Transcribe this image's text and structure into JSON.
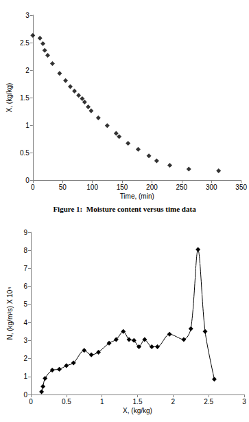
{
  "chart_data": [
    {
      "type": "scatter",
      "title": "Figure 1:  Moisture content versus time data",
      "x_label": "Time, (min)",
      "y_label": "X, (kg/kg)",
      "x": [
        0,
        12,
        17,
        20,
        25,
        33,
        45,
        55,
        63,
        70,
        77,
        83,
        87,
        93,
        98,
        110,
        125,
        140,
        145,
        160,
        177,
        195,
        208,
        230,
        262,
        312
      ],
      "values": [
        2.63,
        2.58,
        2.48,
        2.36,
        2.27,
        2.12,
        1.94,
        1.81,
        1.7,
        1.62,
        1.54,
        1.48,
        1.42,
        1.33,
        1.26,
        1.13,
        0.99,
        0.85,
        0.79,
        0.67,
        0.56,
        0.44,
        0.35,
        0.27,
        0.2,
        0.17
      ],
      "xlim": [
        0,
        350
      ],
      "xticks": [
        0,
        50,
        100,
        150,
        200,
        250,
        300,
        350
      ],
      "ylim": [
        0,
        3
      ],
      "yticks": [
        0,
        0.5,
        1,
        1.5,
        2,
        2.5,
        3
      ],
      "grid": false,
      "color": "#000000",
      "marker": "diamond"
    },
    {
      "type": "line",
      "x_label": "X, (kg/kg)",
      "y_label": "N, (kg/m²s) X 10⁴",
      "x": [
        0.15,
        0.17,
        0.2,
        0.3,
        0.4,
        0.5,
        0.6,
        0.75,
        0.85,
        0.95,
        1.1,
        1.2,
        1.3,
        1.38,
        1.45,
        1.52,
        1.6,
        1.7,
        1.78,
        1.95,
        2.15,
        2.25,
        2.35,
        2.45,
        2.58
      ],
      "values": [
        0.15,
        0.45,
        0.9,
        1.35,
        1.4,
        1.6,
        1.75,
        2.45,
        2.2,
        2.35,
        2.85,
        3.05,
        3.5,
        3.05,
        3.0,
        2.65,
        3.05,
        2.65,
        2.65,
        3.35,
        3.05,
        3.65,
        8.05,
        3.5,
        0.85
      ],
      "xlim": [
        0,
        3
      ],
      "xticks": [
        0,
        0.5,
        1,
        1.5,
        2,
        2.5,
        3
      ],
      "ylim": [
        0,
        9
      ],
      "yticks": [
        0,
        1,
        2,
        3,
        4,
        5,
        6,
        7,
        8,
        9
      ],
      "grid": false,
      "color": "#000000",
      "marker": "diamond",
      "line_style": "solid"
    }
  ]
}
